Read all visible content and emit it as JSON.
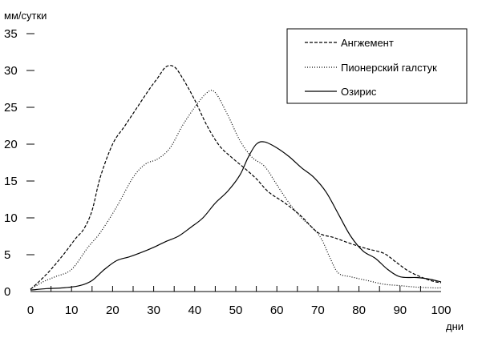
{
  "chart_data": {
    "type": "line",
    "title": "",
    "xlabel": "дни",
    "ylabel": "мм/сутки",
    "xlim": [
      0,
      100
    ],
    "ylim": [
      0,
      35
    ],
    "x_ticks": [
      0,
      10,
      20,
      30,
      40,
      50,
      60,
      70,
      80,
      90,
      100
    ],
    "y_ticks": [
      0,
      5,
      10,
      15,
      20,
      25,
      30,
      35
    ],
    "grid": false,
    "legend_position": "top-right",
    "series": [
      {
        "name": "Ангжемент",
        "style": "dashed",
        "points": [
          [
            0,
            0.3
          ],
          [
            2,
            1.3
          ],
          [
            5,
            3.0
          ],
          [
            8,
            5.0
          ],
          [
            11,
            7.2
          ],
          [
            13,
            8.5
          ],
          [
            15,
            11
          ],
          [
            17,
            15.5
          ],
          [
            20,
            20
          ],
          [
            23,
            22.5
          ],
          [
            26,
            25
          ],
          [
            29,
            27.5
          ],
          [
            31,
            29
          ],
          [
            33,
            30.5
          ],
          [
            35,
            30.5
          ],
          [
            37,
            29
          ],
          [
            40,
            26
          ],
          [
            43,
            22.5
          ],
          [
            46,
            19.8
          ],
          [
            49,
            18.2
          ],
          [
            52,
            16.8
          ],
          [
            55,
            15.3
          ],
          [
            58,
            13.5
          ],
          [
            62,
            12.0
          ],
          [
            66,
            10.2
          ],
          [
            70,
            8.0
          ],
          [
            74,
            7.3
          ],
          [
            78,
            6.5
          ],
          [
            82,
            5.8
          ],
          [
            86,
            5.2
          ],
          [
            89,
            4.0
          ],
          [
            92,
            2.8
          ],
          [
            95,
            2.0
          ],
          [
            98,
            1.4
          ],
          [
            100,
            1.2
          ]
        ]
      },
      {
        "name": "Пионерский галстук",
        "style": "dotted",
        "points": [
          [
            0,
            0.3
          ],
          [
            3,
            1.3
          ],
          [
            6,
            2.0
          ],
          [
            10,
            3.0
          ],
          [
            14,
            6.0
          ],
          [
            17,
            8.0
          ],
          [
            21,
            11.5
          ],
          [
            25,
            15.5
          ],
          [
            28,
            17.3
          ],
          [
            31,
            18.0
          ],
          [
            34,
            19.5
          ],
          [
            37,
            22.5
          ],
          [
            40,
            25.0
          ],
          [
            43,
            27.0
          ],
          [
            45,
            27.0
          ],
          [
            48,
            24.0
          ],
          [
            51,
            20.5
          ],
          [
            54,
            18.2
          ],
          [
            57,
            17.0
          ],
          [
            60,
            14.5
          ],
          [
            63,
            12.0
          ],
          [
            66,
            10.0
          ],
          [
            69,
            8.5
          ],
          [
            71,
            7.0
          ],
          [
            73,
            4.5
          ],
          [
            75,
            2.5
          ],
          [
            78,
            2.0
          ],
          [
            82,
            1.5
          ],
          [
            86,
            1.0
          ],
          [
            90,
            0.8
          ],
          [
            94,
            0.6
          ],
          [
            98,
            0.5
          ],
          [
            100,
            0.5
          ]
        ]
      },
      {
        "name": "Озирис",
        "style": "solid",
        "points": [
          [
            0,
            0.2
          ],
          [
            4,
            0.4
          ],
          [
            8,
            0.5
          ],
          [
            12,
            0.8
          ],
          [
            15,
            1.5
          ],
          [
            18,
            3.0
          ],
          [
            21,
            4.2
          ],
          [
            24,
            4.7
          ],
          [
            27,
            5.3
          ],
          [
            30,
            6.0
          ],
          [
            33,
            6.8
          ],
          [
            36,
            7.5
          ],
          [
            39,
            8.7
          ],
          [
            42,
            10.0
          ],
          [
            45,
            12.0
          ],
          [
            48,
            13.6
          ],
          [
            51,
            15.8
          ],
          [
            53,
            18.2
          ],
          [
            55,
            20.0
          ],
          [
            57,
            20.3
          ],
          [
            60,
            19.5
          ],
          [
            63,
            18.3
          ],
          [
            66,
            16.8
          ],
          [
            69,
            15.5
          ],
          [
            72,
            13.5
          ],
          [
            75,
            10.5
          ],
          [
            78,
            7.5
          ],
          [
            81,
            5.5
          ],
          [
            84,
            4.5
          ],
          [
            87,
            3.0
          ],
          [
            90,
            2.0
          ],
          [
            94,
            1.9
          ],
          [
            97,
            1.7
          ],
          [
            100,
            1.3
          ]
        ]
      }
    ]
  }
}
